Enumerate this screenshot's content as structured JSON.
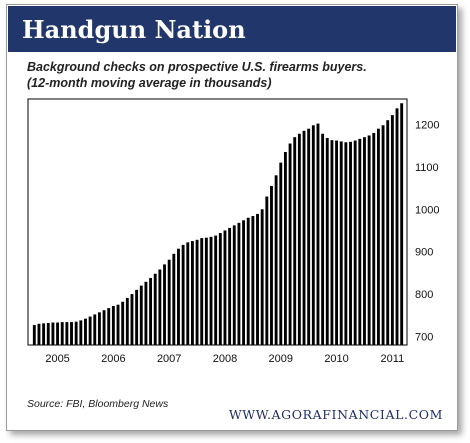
{
  "header": {
    "title": "Handgun Nation"
  },
  "subtitle": {
    "line1": "Background checks on prospective U.S. firearms buyers.",
    "line2": "(12-month moving average in thousands)"
  },
  "source": "Source: FBI, Bloomberg News",
  "website": "WWW.AGORAFINANCIAL.COM",
  "colors": {
    "header_bg": "#21366a",
    "bar": "#000000",
    "website": "#1f2f63"
  },
  "chart_data": {
    "type": "bar",
    "title": "",
    "xlabel": "",
    "ylabel": "",
    "ylim": [
      680,
      1260
    ],
    "yticks": [
      700,
      800,
      900,
      1000,
      1100,
      1200
    ],
    "ytick_labels": [
      "700",
      "800",
      "900",
      "1000",
      "1100",
      "1200"
    ],
    "xtick_labels": [
      "2005",
      "2006",
      "2007",
      "2008",
      "2009",
      "2010",
      "2011"
    ],
    "xtick_positions": [
      "2004-12",
      "2005-12",
      "2006-12",
      "2007-12",
      "2008-12",
      "2009-12",
      "2010-12"
    ],
    "grid": false,
    "categories": [
      "2004-07",
      "2004-08",
      "2004-09",
      "2004-10",
      "2004-11",
      "2004-12",
      "2005-01",
      "2005-02",
      "2005-03",
      "2005-04",
      "2005-05",
      "2005-06",
      "2005-07",
      "2005-08",
      "2005-09",
      "2005-10",
      "2005-11",
      "2005-12",
      "2006-01",
      "2006-02",
      "2006-03",
      "2006-04",
      "2006-05",
      "2006-06",
      "2006-07",
      "2006-08",
      "2006-09",
      "2006-10",
      "2006-11",
      "2006-12",
      "2007-01",
      "2007-02",
      "2007-03",
      "2007-04",
      "2007-05",
      "2007-06",
      "2007-07",
      "2007-08",
      "2007-09",
      "2007-10",
      "2007-11",
      "2007-12",
      "2008-01",
      "2008-02",
      "2008-03",
      "2008-04",
      "2008-05",
      "2008-06",
      "2008-07",
      "2008-08",
      "2008-09",
      "2008-10",
      "2008-11",
      "2008-12",
      "2009-01",
      "2009-02",
      "2009-03",
      "2009-04",
      "2009-05",
      "2009-06",
      "2009-07",
      "2009-08",
      "2009-09",
      "2009-10",
      "2009-11",
      "2009-12",
      "2010-01",
      "2010-02",
      "2010-03",
      "2010-04",
      "2010-05",
      "2010-06",
      "2010-07",
      "2010-08",
      "2010-09",
      "2010-10",
      "2010-11",
      "2010-12",
      "2011-01",
      "2011-02"
    ],
    "series": [
      {
        "values": [
          727,
          730,
          731,
          732,
          733,
          733,
          734,
          734,
          734,
          735,
          738,
          742,
          747,
          752,
          757,
          762,
          767,
          772,
          775,
          782,
          791,
          800,
          810,
          820,
          829,
          838,
          848,
          858,
          870,
          881,
          895,
          907,
          916,
          922,
          925,
          928,
          932,
          933,
          935,
          938,
          944,
          950,
          956,
          962,
          968,
          974,
          980,
          984,
          989,
          1000,
          1030,
          1055,
          1080,
          1110,
          1135,
          1155,
          1170,
          1178,
          1185,
          1190,
          1198,
          1202,
          1178,
          1168,
          1163,
          1162,
          1160,
          1158,
          1159,
          1162,
          1166,
          1170,
          1174,
          1180,
          1190,
          1198,
          1210,
          1222,
          1238,
          1250
        ]
      }
    ]
  }
}
